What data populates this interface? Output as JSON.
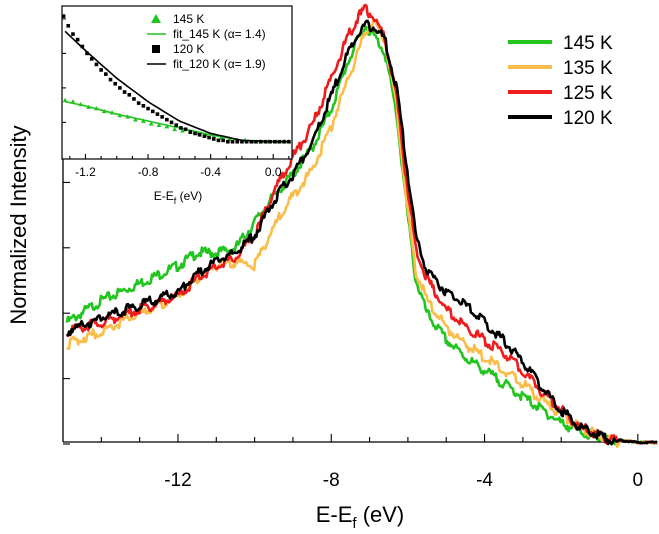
{
  "chart_data": {
    "main": {
      "type": "line",
      "xlabel": "E-E",
      "xlabel_sub": "f",
      "xlabel_unit": " (eV)",
      "ylabel": "Normalized Intensity",
      "xlim": [
        -15,
        0.5
      ],
      "ylim": [
        0,
        1.0
      ],
      "xticks": [
        -12,
        -8,
        -4,
        0
      ],
      "xtick_labels": [
        "-12",
        "-8",
        "-4",
        "0"
      ],
      "legend_position": "top-right",
      "series": [
        {
          "name": "145 K",
          "color": "#22c41e",
          "x": [
            -14.9,
            -14.0,
            -13.0,
            -12.0,
            -11.5,
            -11.0,
            -10.5,
            -10.0,
            -9.5,
            -9.0,
            -8.5,
            -8.0,
            -7.6,
            -7.3,
            -7.1,
            -6.9,
            -6.6,
            -6.3,
            -6.0,
            -5.8,
            -5.5,
            -5.0,
            -4.5,
            -4.0,
            -3.5,
            -3.0,
            -2.5,
            -2.0,
            -1.5,
            -1.0,
            -0.5,
            0.0,
            0.5
          ],
          "values": [
            0.28,
            0.33,
            0.37,
            0.41,
            0.44,
            0.44,
            0.45,
            0.51,
            0.57,
            0.62,
            0.68,
            0.77,
            0.87,
            0.93,
            0.96,
            0.94,
            0.9,
            0.76,
            0.52,
            0.38,
            0.3,
            0.24,
            0.2,
            0.17,
            0.14,
            0.11,
            0.08,
            0.05,
            0.03,
            0.015,
            0.005,
            0.0,
            0.0
          ]
        },
        {
          "name": "135 K",
          "color": "#fbbd4a",
          "x": [
            -14.9,
            -14.0,
            -13.0,
            -12.0,
            -11.5,
            -11.0,
            -10.5,
            -10.0,
            -9.5,
            -9.0,
            -8.5,
            -8.0,
            -7.6,
            -7.3,
            -7.1,
            -6.9,
            -6.6,
            -6.3,
            -6.0,
            -5.8,
            -5.5,
            -5.0,
            -4.5,
            -4.0,
            -3.5,
            -3.0,
            -2.5,
            -2.0,
            -1.5,
            -1.0,
            -0.5,
            0.0,
            0.5
          ],
          "values": [
            0.23,
            0.26,
            0.3,
            0.34,
            0.38,
            0.41,
            0.42,
            0.41,
            0.5,
            0.57,
            0.63,
            0.73,
            0.83,
            0.9,
            0.95,
            0.97,
            0.93,
            0.78,
            0.53,
            0.4,
            0.33,
            0.27,
            0.23,
            0.2,
            0.17,
            0.14,
            0.1,
            0.07,
            0.04,
            0.02,
            0.005,
            0.0,
            0.0
          ]
        },
        {
          "name": "125 K",
          "color": "#ee1c1c",
          "x": [
            -14.9,
            -14.0,
            -13.0,
            -12.0,
            -11.5,
            -11.0,
            -10.5,
            -10.0,
            -9.5,
            -9.0,
            -8.5,
            -8.0,
            -7.6,
            -7.3,
            -7.1,
            -6.9,
            -6.6,
            -6.3,
            -6.0,
            -5.8,
            -5.5,
            -5.0,
            -4.5,
            -4.0,
            -3.5,
            -3.0,
            -2.5,
            -2.0,
            -1.5,
            -1.0,
            -0.5,
            0.0,
            0.5
          ],
          "values": [
            0.26,
            0.28,
            0.31,
            0.34,
            0.38,
            0.41,
            0.43,
            0.48,
            0.58,
            0.66,
            0.73,
            0.84,
            0.93,
            0.98,
            1.0,
            0.98,
            0.93,
            0.8,
            0.58,
            0.45,
            0.38,
            0.31,
            0.27,
            0.24,
            0.21,
            0.17,
            0.12,
            0.08,
            0.04,
            0.02,
            0.005,
            0.0,
            0.0
          ]
        },
        {
          "name": "120 K",
          "color": "#000000",
          "x": [
            -14.9,
            -14.0,
            -13.0,
            -12.0,
            -11.5,
            -11.0,
            -10.5,
            -10.0,
            -9.5,
            -9.0,
            -8.5,
            -8.0,
            -7.6,
            -7.3,
            -7.1,
            -6.9,
            -6.6,
            -6.3,
            -6.0,
            -5.8,
            -5.5,
            -5.0,
            -4.5,
            -4.0,
            -3.5,
            -3.0,
            -2.5,
            -2.0,
            -1.5,
            -1.0,
            -0.5,
            0.0,
            0.5
          ],
          "values": [
            0.26,
            0.29,
            0.32,
            0.35,
            0.39,
            0.42,
            0.44,
            0.48,
            0.56,
            0.62,
            0.69,
            0.8,
            0.89,
            0.94,
            0.96,
            0.96,
            0.93,
            0.82,
            0.62,
            0.48,
            0.4,
            0.35,
            0.32,
            0.28,
            0.24,
            0.19,
            0.13,
            0.08,
            0.04,
            0.02,
            0.005,
            0.0,
            0.0
          ]
        }
      ]
    },
    "inset": {
      "type": "scatter",
      "xlabel": "E-E",
      "xlabel_sub": "f",
      "xlabel_unit": " (eV)",
      "xlim": [
        -1.35,
        0.12
      ],
      "ylim": [
        0,
        1.0
      ],
      "xticks": [
        -1.2,
        -0.8,
        -0.4,
        0.0
      ],
      "xtick_labels": [
        "-1.2",
        "-0.8",
        "-0.4",
        "0.0"
      ],
      "legend_position": "top-left",
      "series": [
        {
          "name": "145 K",
          "kind": "markers",
          "marker": "triangle",
          "color": "#22c41e",
          "x": [
            -1.33,
            -1.28,
            -1.23,
            -1.18,
            -1.13,
            -1.08,
            -1.03,
            -0.98,
            -0.93,
            -0.88,
            -0.83,
            -0.78,
            -0.73,
            -0.68,
            -0.63,
            -0.58,
            -0.53,
            -0.48,
            -0.43,
            -0.38,
            -0.33,
            -0.28,
            -0.23,
            -0.18,
            -0.13,
            -0.08,
            -0.03,
            0.02,
            0.07,
            0.1
          ],
          "values": [
            0.36,
            0.35,
            0.33,
            0.31,
            0.3,
            0.28,
            0.27,
            0.25,
            0.24,
            0.22,
            0.21,
            0.19,
            0.18,
            0.17,
            0.15,
            0.14,
            0.13,
            0.12,
            0.11,
            0.1,
            0.09,
            0.08,
            0.07,
            0.07,
            0.06,
            0.06,
            0.06,
            0.06,
            0.06,
            0.06
          ]
        },
        {
          "name": "fit_145 K (α= 1.4)",
          "kind": "line",
          "color": "#22c41e",
          "x": [
            -1.33,
            -1.2,
            -1.0,
            -0.8,
            -0.6,
            -0.4,
            -0.2,
            0.0,
            0.1
          ],
          "values": [
            0.35,
            0.32,
            0.26,
            0.21,
            0.16,
            0.11,
            0.07,
            0.06,
            0.06
          ]
        },
        {
          "name": "120 K",
          "kind": "markers",
          "marker": "square",
          "color": "#000000",
          "x": [
            -1.34,
            -1.31,
            -1.28,
            -1.25,
            -1.22,
            -1.19,
            -1.16,
            -1.13,
            -1.1,
            -1.07,
            -1.04,
            -1.01,
            -0.98,
            -0.95,
            -0.92,
            -0.89,
            -0.86,
            -0.83,
            -0.8,
            -0.77,
            -0.74,
            -0.71,
            -0.68,
            -0.65,
            -0.62,
            -0.59,
            -0.56,
            -0.53,
            -0.5,
            -0.47,
            -0.44,
            -0.41,
            -0.38,
            -0.35,
            -0.32,
            -0.29,
            -0.26,
            -0.23,
            -0.2,
            -0.17,
            -0.14,
            -0.11,
            -0.08,
            -0.05,
            -0.02,
            0.01,
            0.04,
            0.07,
            0.1
          ],
          "values": [
            0.97,
            0.9,
            0.84,
            0.8,
            0.75,
            0.7,
            0.66,
            0.62,
            0.58,
            0.55,
            0.51,
            0.48,
            0.45,
            0.42,
            0.4,
            0.37,
            0.34,
            0.32,
            0.3,
            0.28,
            0.26,
            0.24,
            0.22,
            0.2,
            0.18,
            0.16,
            0.15,
            0.13,
            0.12,
            0.11,
            0.1,
            0.09,
            0.08,
            0.07,
            0.07,
            0.06,
            0.06,
            0.06,
            0.06,
            0.06,
            0.06,
            0.06,
            0.06,
            0.06,
            0.06,
            0.06,
            0.06,
            0.06,
            0.06
          ]
        },
        {
          "name": "fit_120 K (α= 1.9)",
          "kind": "line",
          "color": "#000000",
          "x": [
            -1.33,
            -1.2,
            -1.0,
            -0.8,
            -0.6,
            -0.4,
            -0.2,
            0.0,
            0.1
          ],
          "values": [
            0.86,
            0.72,
            0.52,
            0.35,
            0.21,
            0.12,
            0.07,
            0.06,
            0.06
          ]
        }
      ]
    }
  }
}
